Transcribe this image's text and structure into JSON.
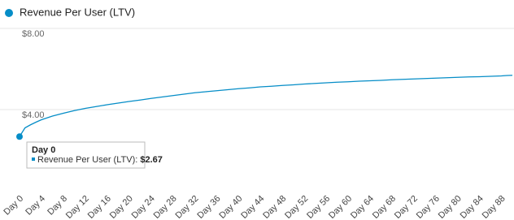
{
  "chart_data": {
    "type": "line",
    "series": [
      {
        "name": "Revenue Per User (LTV)",
        "color": "#058dc7",
        "values": [
          2.67,
          3.1,
          3.25,
          3.38,
          3.5,
          3.68,
          3.82,
          3.95,
          4.06,
          4.15,
          4.24,
          4.32,
          4.4,
          4.47,
          4.55,
          4.62,
          4.69,
          4.76,
          4.83,
          4.88,
          4.93,
          4.98,
          5.03,
          5.07,
          5.12,
          5.15,
          5.19,
          5.22,
          5.26,
          5.29,
          5.32,
          5.35,
          5.37,
          5.4,
          5.42,
          5.44,
          5.47,
          5.49,
          5.51,
          5.53,
          5.55,
          5.57,
          5.59,
          5.61,
          5.62,
          5.64,
          5.66,
          5.68,
          5.69
        ]
      }
    ],
    "x": [
      0,
      1,
      2,
      3,
      4,
      6,
      8,
      10,
      12,
      14,
      16,
      18,
      20,
      22,
      24,
      26,
      28,
      30,
      32,
      34,
      36,
      38,
      40,
      42,
      44,
      46,
      48,
      50,
      52,
      54,
      56,
      58,
      60,
      62,
      64,
      66,
      68,
      70,
      72,
      74,
      76,
      78,
      80,
      82,
      84,
      86,
      88,
      89,
      90
    ],
    "xlim": [
      0,
      90
    ],
    "xticks": [
      {
        "value": 0,
        "label": "Day 0"
      },
      {
        "value": 4,
        "label": "Day 4"
      },
      {
        "value": 8,
        "label": "Day 8"
      },
      {
        "value": 12,
        "label": "Day 12"
      },
      {
        "value": 16,
        "label": "Day 16"
      },
      {
        "value": 20,
        "label": "Day 20"
      },
      {
        "value": 24,
        "label": "Day 24"
      },
      {
        "value": 28,
        "label": "Day 28"
      },
      {
        "value": 32,
        "label": "Day 32"
      },
      {
        "value": 36,
        "label": "Day 36"
      },
      {
        "value": 40,
        "label": "Day 40"
      },
      {
        "value": 44,
        "label": "Day 44"
      },
      {
        "value": 48,
        "label": "Day 48"
      },
      {
        "value": 52,
        "label": "Day 52"
      },
      {
        "value": 56,
        "label": "Day 56"
      },
      {
        "value": 60,
        "label": "Day 60"
      },
      {
        "value": 64,
        "label": "Day 64"
      },
      {
        "value": 68,
        "label": "Day 68"
      },
      {
        "value": 72,
        "label": "Day 72"
      },
      {
        "value": 76,
        "label": "Day 76"
      },
      {
        "value": 80,
        "label": "Day 80"
      },
      {
        "value": 84,
        "label": "Day 84"
      },
      {
        "value": 88,
        "label": "Day 88"
      }
    ],
    "ylim": [
      0,
      8
    ],
    "yticks": [
      {
        "value": 4,
        "label": "$4.00"
      },
      {
        "value": 8,
        "label": "$8.00"
      }
    ],
    "grid": true,
    "tooltip": {
      "title": "Day 0",
      "series_label": "Revenue Per User (LTV):",
      "value_label": "$2.67"
    }
  }
}
